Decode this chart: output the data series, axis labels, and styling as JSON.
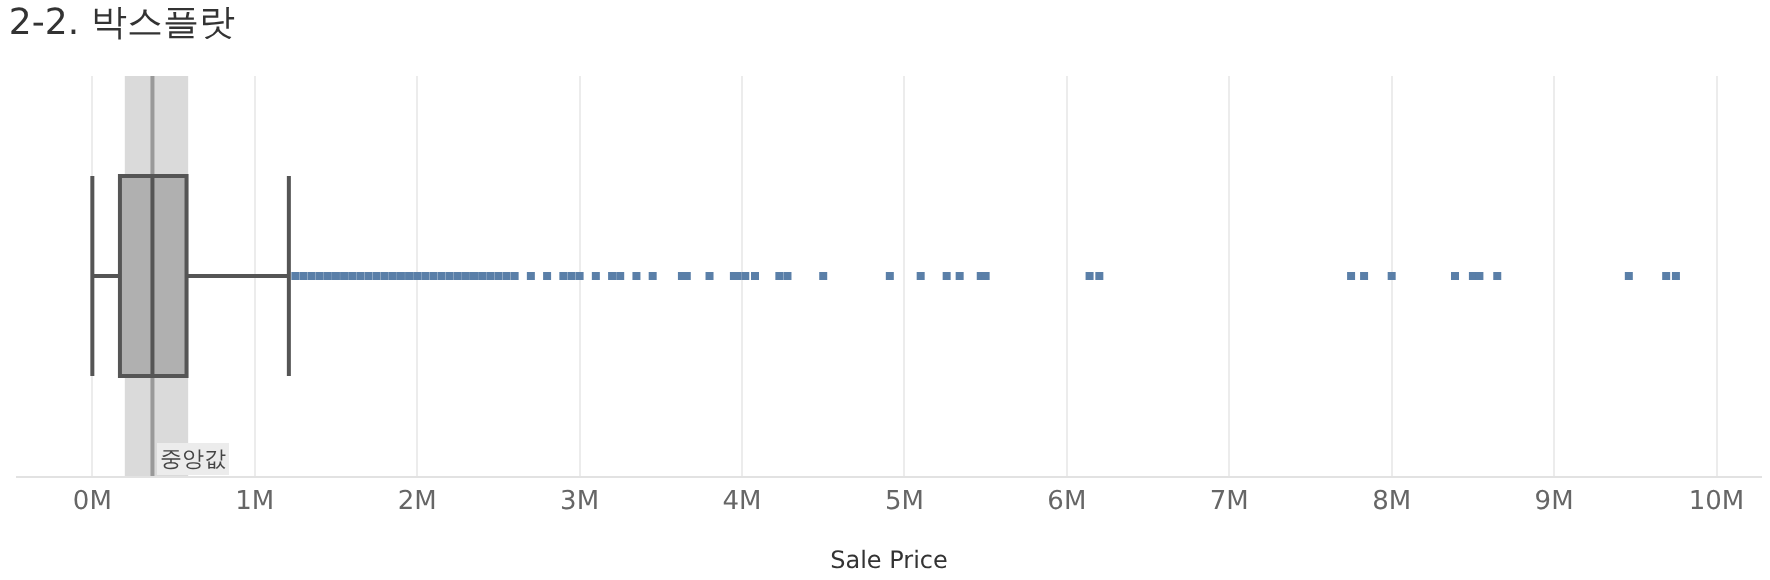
{
  "chart_data": {
    "type": "box",
    "orientation": "horizontal",
    "title": "2-2. 박스플랏",
    "xlabel": "Sale Price",
    "categories": [
      null
    ],
    "boxes": [
      {
        "low": 0,
        "q1": 0.17,
        "median": 0.37,
        "q3": 0.58,
        "high": 1.21,
        "outliers": [
          1.25,
          1.3,
          1.35,
          1.4,
          1.45,
          1.5,
          1.55,
          1.6,
          1.65,
          1.7,
          1.75,
          1.8,
          1.85,
          1.9,
          1.95,
          2.0,
          2.05,
          2.1,
          2.15,
          2.2,
          2.25,
          2.3,
          2.35,
          2.4,
          2.45,
          2.5,
          2.55,
          2.6,
          2.7,
          2.8,
          2.9,
          2.95,
          3.0,
          3.1,
          3.2,
          3.25,
          3.35,
          3.45,
          3.63,
          3.66,
          3.8,
          3.95,
          3.97,
          4.02,
          4.08,
          4.23,
          4.28,
          4.5,
          4.91,
          5.1,
          5.26,
          5.34,
          5.47,
          5.5,
          6.14,
          6.2,
          7.75,
          7.83,
          8.0,
          8.39,
          8.5,
          8.54,
          8.65,
          9.46,
          9.69,
          9.75
        ]
      }
    ],
    "colors": [
      "#b0b0b0"
    ],
    "marker": "square",
    "xlim": [
      -0.47,
      10.28
    ],
    "xticks": [
      {
        "value": 0,
        "label": "0M"
      },
      {
        "value": 1,
        "label": "1M"
      },
      {
        "value": 2,
        "label": "2M"
      },
      {
        "value": 3,
        "label": "3M"
      },
      {
        "value": 4,
        "label": "4M"
      },
      {
        "value": 5,
        "label": "5M"
      },
      {
        "value": 6,
        "label": "6M"
      },
      {
        "value": 7,
        "label": "7M"
      },
      {
        "value": 8,
        "label": "8M"
      },
      {
        "value": 9,
        "label": "9M"
      },
      {
        "value": 10,
        "label": "10M"
      }
    ],
    "ref_lines": [
      {
        "axis": "x",
        "value": 0.37,
        "label": "중앙값",
        "color": "#999999"
      }
    ],
    "bands": [
      {
        "axis": "x",
        "from": 0.2,
        "to": 0.59,
        "color": "#dadada"
      }
    ],
    "grid": "x",
    "tick_labels": "x"
  }
}
